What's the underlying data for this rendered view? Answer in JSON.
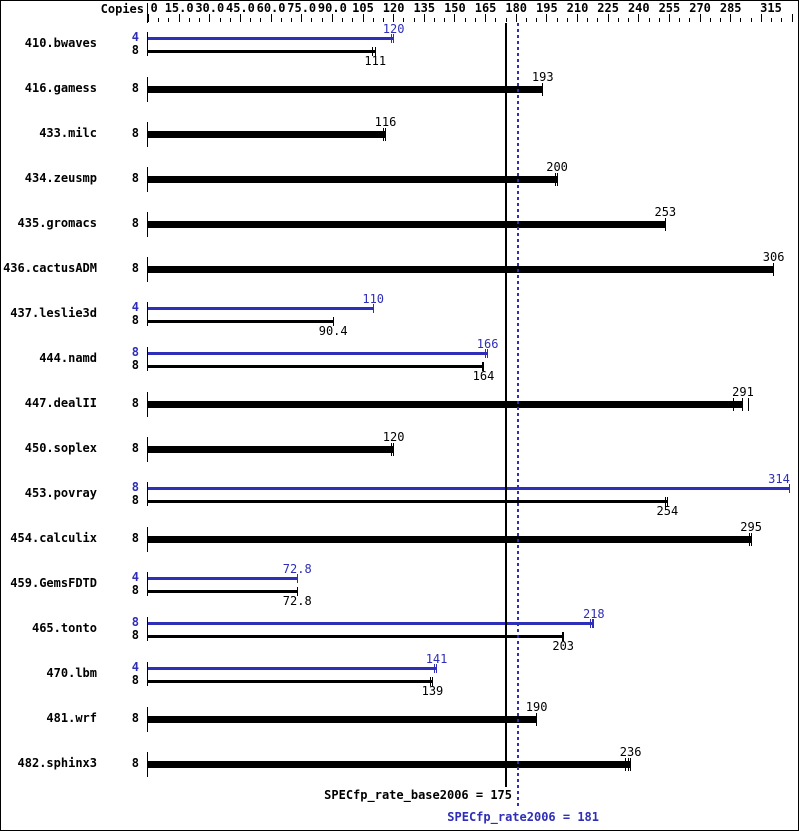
{
  "chart_data": {
    "type": "bar",
    "orientation": "horizontal",
    "title": "",
    "copies_header": "Copies",
    "axis": {
      "min": 0,
      "max": 315,
      "minor_tick_step": 5,
      "major_tick_step": 15,
      "tick_labels": [
        "0",
        "15.0",
        "30.0",
        "45.0",
        "60.0",
        "75.0",
        "90.0",
        "105",
        "120",
        "135",
        "150",
        "165",
        "180",
        "195",
        "210",
        "225",
        "240",
        "255",
        "270",
        "285",
        "315"
      ],
      "tick_label_values": [
        0,
        15,
        30,
        45,
        60,
        75,
        90,
        105,
        120,
        135,
        150,
        165,
        180,
        195,
        210,
        225,
        240,
        255,
        270,
        285,
        315
      ]
    },
    "colors": {
      "peak": "#2e2eb8",
      "base": "#000000"
    },
    "benchmarks": [
      {
        "name": "410.bwaves",
        "bars": [
          {
            "copies": "4",
            "kind": "peak",
            "value": 120,
            "label": "120",
            "marks": [
              119,
              120
            ]
          },
          {
            "copies": "8",
            "kind": "base",
            "value": 111,
            "label": "111",
            "marks": [
              109.5,
              111
            ]
          }
        ]
      },
      {
        "name": "416.gamess",
        "bars": [
          {
            "copies": "8",
            "kind": "base",
            "value": 193,
            "label": "193",
            "marks": [
              193
            ]
          }
        ]
      },
      {
        "name": "433.milc",
        "bars": [
          {
            "copies": "8",
            "kind": "base",
            "value": 116,
            "label": "116",
            "marks": [
              115,
              116
            ]
          }
        ]
      },
      {
        "name": "434.zeusmp",
        "bars": [
          {
            "copies": "8",
            "kind": "base",
            "value": 200,
            "label": "200",
            "marks": [
              199,
              200
            ]
          }
        ]
      },
      {
        "name": "435.gromacs",
        "bars": [
          {
            "copies": "8",
            "kind": "base",
            "value": 253,
            "label": "253",
            "marks": [
              253
            ]
          }
        ]
      },
      {
        "name": "436.cactusADM",
        "bars": [
          {
            "copies": "8",
            "kind": "base",
            "value": 306,
            "label": "306",
            "marks": [
              306
            ]
          }
        ]
      },
      {
        "name": "437.leslie3d",
        "bars": [
          {
            "copies": "4",
            "kind": "peak",
            "value": 110,
            "label": "110",
            "marks": [
              110
            ]
          },
          {
            "copies": "8",
            "kind": "base",
            "value": 90.4,
            "label": "90.4",
            "marks": [
              90.4
            ]
          }
        ]
      },
      {
        "name": "444.namd",
        "bars": [
          {
            "copies": "8",
            "kind": "peak",
            "value": 166,
            "label": "166",
            "marks": [
              165,
              166
            ]
          },
          {
            "copies": "8",
            "kind": "base",
            "value": 164,
            "label": "164",
            "marks": [
              163.5,
              164
            ]
          }
        ]
      },
      {
        "name": "447.dealII",
        "bars": [
          {
            "copies": "8",
            "kind": "base",
            "value": 291,
            "label": "291",
            "marks": [
              286.5,
              291,
              293.5
            ]
          }
        ]
      },
      {
        "name": "450.soplex",
        "bars": [
          {
            "copies": "8",
            "kind": "base",
            "value": 120,
            "label": "120",
            "marks": [
              119,
              120
            ]
          }
        ]
      },
      {
        "name": "453.povray",
        "bars": [
          {
            "copies": "8",
            "kind": "peak",
            "value": 314,
            "label": "314",
            "marks": [
              314
            ]
          },
          {
            "copies": "8",
            "kind": "base",
            "value": 254,
            "label": "254",
            "marks": [
              253,
              254
            ]
          }
        ]
      },
      {
        "name": "454.calculix",
        "bars": [
          {
            "copies": "8",
            "kind": "base",
            "value": 295,
            "label": "295",
            "marks": [
              294,
              295
            ]
          }
        ]
      },
      {
        "name": "459.GemsFDTD",
        "bars": [
          {
            "copies": "4",
            "kind": "peak",
            "value": 72.8,
            "label": "72.8",
            "marks": [
              72.8
            ]
          },
          {
            "copies": "8",
            "kind": "base",
            "value": 72.8,
            "label": "72.8",
            "marks": [
              72.8
            ]
          }
        ]
      },
      {
        "name": "465.tonto",
        "bars": [
          {
            "copies": "8",
            "kind": "peak",
            "value": 218,
            "label": "218",
            "marks": [
              216.5,
              217.3,
              218
            ]
          },
          {
            "copies": "8",
            "kind": "base",
            "value": 203,
            "label": "203",
            "marks": [
              202.5,
              203
            ]
          }
        ]
      },
      {
        "name": "470.lbm",
        "bars": [
          {
            "copies": "4",
            "kind": "peak",
            "value": 141,
            "label": "141",
            "marks": [
              140,
              141
            ]
          },
          {
            "copies": "8",
            "kind": "base",
            "value": 139,
            "label": "139",
            "marks": [
              138,
              139
            ]
          }
        ]
      },
      {
        "name": "481.wrf",
        "bars": [
          {
            "copies": "8",
            "kind": "base",
            "value": 190,
            "label": "190",
            "marks": [
              190
            ]
          }
        ]
      },
      {
        "name": "482.sphinx3",
        "bars": [
          {
            "copies": "8",
            "kind": "base",
            "value": 236,
            "label": "236",
            "marks": [
              233.5,
              235,
              236
            ]
          }
        ]
      }
    ],
    "reference_lines": [
      {
        "name": "base",
        "label": "SPECfp_rate_base2006 = 175",
        "value": 175,
        "style": "solid",
        "color": "#000000"
      },
      {
        "name": "peak",
        "label": "SPECfp_rate2006 = 181",
        "value": 181,
        "style": "dotted",
        "color": "#2e2eb8"
      }
    ]
  }
}
